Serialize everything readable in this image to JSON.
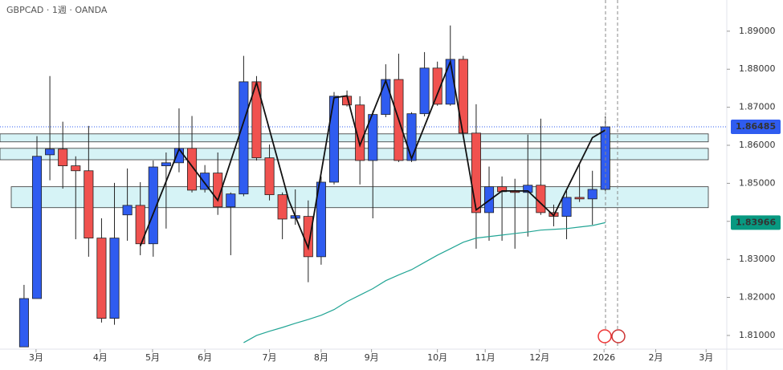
{
  "chart_data": {
    "type": "candlestick",
    "title": "GBPCAD · 1週 · OANDA",
    "up_color": "#2f5cf0",
    "down_color": "#f0524f",
    "x": [
      0,
      1,
      2,
      3,
      4,
      5,
      6,
      7,
      8,
      9,
      10,
      11,
      12,
      13,
      14,
      15,
      16,
      17,
      18,
      19,
      20,
      21,
      22,
      23,
      24,
      25,
      26,
      27,
      28,
      29,
      30,
      31,
      32,
      33,
      34,
      35,
      36,
      37,
      38,
      39,
      40,
      41,
      42,
      43,
      44,
      45
    ],
    "open": [
      1.807,
      1.8197,
      1.8575,
      1.859,
      1.8546,
      1.8533,
      1.8356,
      1.8145,
      1.8417,
      1.8442,
      1.8341,
      1.8546,
      1.8554,
      1.8592,
      1.8484,
      1.8527,
      1.8438,
      1.8472,
      1.8767,
      1.8567,
      1.847,
      1.8408,
      1.8413,
      1.8307,
      1.8503,
      1.8729,
      1.8706,
      1.856,
      1.8681,
      1.8773,
      1.856,
      1.8683,
      1.8803,
      1.8708,
      1.8826,
      1.8632,
      1.8423,
      1.8491,
      1.848,
      1.8476,
      1.8495,
      1.8423,
      1.8413,
      1.8463,
      1.8459,
      1.8484
    ],
    "high": [
      1.8233,
      1.8624,
      1.8782,
      1.8662,
      1.8571,
      1.8651,
      1.8408,
      1.8501,
      1.8539,
      1.8503,
      1.856,
      1.8581,
      1.8697,
      1.8677,
      1.8548,
      1.8581,
      1.8476,
      1.8835,
      1.8782,
      1.8602,
      1.8476,
      1.8484,
      1.8455,
      1.8518,
      1.874,
      1.8744,
      1.8729,
      1.8691,
      1.8813,
      1.8841,
      1.8687,
      1.8845,
      1.882,
      1.8915,
      1.8835,
      1.8708,
      1.8544,
      1.8518,
      1.8512,
      1.8628,
      1.867,
      1.8444,
      1.848,
      1.855,
      1.8533,
      1.8676
    ],
    "low": [
      1.807,
      1.8197,
      1.8508,
      1.8486,
      1.8353,
      1.8307,
      1.8134,
      1.8128,
      1.8349,
      1.8311,
      1.8307,
      1.8381,
      1.8529,
      1.8476,
      1.8476,
      1.8417,
      1.8311,
      1.8466,
      1.856,
      1.8455,
      1.8353,
      1.8391,
      1.824,
      1.8286,
      1.8497,
      1.8702,
      1.8497,
      1.8408,
      1.8674,
      1.8556,
      1.8556,
      1.8676,
      1.8704,
      1.8704,
      1.8624,
      1.8328,
      1.8349,
      1.8349,
      1.8328,
      1.836,
      1.8417,
      1.8387,
      1.8353,
      1.8451,
      1.8391,
      1.848
    ],
    "close": [
      1.8197,
      1.8571,
      1.859,
      1.8546,
      1.8533,
      1.8356,
      1.8145,
      1.8356,
      1.8442,
      1.8341,
      1.8543,
      1.8554,
      1.8592,
      1.8482,
      1.8527,
      1.8438,
      1.8472,
      1.8767,
      1.8567,
      1.847,
      1.8406,
      1.8415,
      1.8307,
      1.8503,
      1.8729,
      1.8706,
      1.856,
      1.8681,
      1.8773,
      1.856,
      1.8683,
      1.8803,
      1.8708,
      1.8826,
      1.8632,
      1.8423,
      1.8491,
      1.8478,
      1.8476,
      1.8495,
      1.8423,
      1.8413,
      1.8463,
      1.8459,
      1.8484,
      1.86485
    ],
    "ma": {
      "color": "#22a595",
      "values": [
        null,
        null,
        null,
        null,
        null,
        null,
        null,
        null,
        null,
        null,
        null,
        null,
        null,
        null,
        null,
        null,
        null,
        1.8081,
        1.81,
        1.8111,
        1.8121,
        1.8132,
        1.8142,
        1.8153,
        1.8168,
        1.8189,
        1.8206,
        1.8223,
        1.8244,
        1.8259,
        1.8273,
        1.8292,
        1.8311,
        1.8328,
        1.8345,
        1.8356,
        1.836,
        1.8364,
        1.8368,
        1.8372,
        1.8377,
        1.8379,
        1.8381,
        1.8385,
        1.8389,
        1.83966
      ]
    },
    "zigzag": {
      "x": [
        9,
        12,
        15,
        18,
        20.5,
        22,
        24,
        25,
        26,
        28,
        30,
        33,
        35,
        37,
        39,
        41,
        44,
        45
      ],
      "values": [
        1.8335,
        1.859,
        1.8455,
        1.8765,
        1.8455,
        1.833,
        1.8725,
        1.873,
        1.86,
        1.877,
        1.8565,
        1.882,
        1.843,
        1.848,
        1.848,
        1.8415,
        1.862,
        1.864
      ]
    },
    "zones": [
      [
        1.8609,
        1.863
      ],
      [
        1.8562,
        1.8592
      ],
      [
        1.8436,
        1.8491
      ]
    ],
    "last_price": 1.86485,
    "ma_last": 1.83966,
    "xlim": [
      -1.86,
      54.4
    ],
    "ylim": [
      1.8064,
      1.8982
    ],
    "yticks": [
      {
        "value": 1.81,
        "label": "1.81000"
      },
      {
        "value": 1.82,
        "label": "1.82000"
      },
      {
        "value": 1.83,
        "label": "1.83000"
      },
      {
        "value": 1.84,
        "label": "1.84000"
      },
      {
        "value": 1.85,
        "label": "1.85000"
      },
      {
        "value": 1.86,
        "label": "1.86000"
      },
      {
        "value": 1.87,
        "label": "1.87000"
      },
      {
        "value": 1.88,
        "label": "1.88000"
      },
      {
        "value": 1.89,
        "label": "1.89000"
      }
    ],
    "xticks": [
      {
        "value": 0.93,
        "label": "3月"
      },
      {
        "value": 5.9,
        "label": "4月"
      },
      {
        "value": 9.95,
        "label": "5月"
      },
      {
        "value": 14.0,
        "label": "6月"
      },
      {
        "value": 19.0,
        "label": "7月"
      },
      {
        "value": 23.0,
        "label": "8月"
      },
      {
        "value": 26.9,
        "label": "9月"
      },
      {
        "value": 32.0,
        "label": "10月"
      },
      {
        "value": 35.7,
        "label": "11月"
      },
      {
        "value": 39.9,
        "label": "12月"
      },
      {
        "value": 44.9,
        "label": "2026"
      },
      {
        "value": 48.9,
        "label": "2月"
      },
      {
        "value": 52.8,
        "label": "3月"
      }
    ]
  }
}
